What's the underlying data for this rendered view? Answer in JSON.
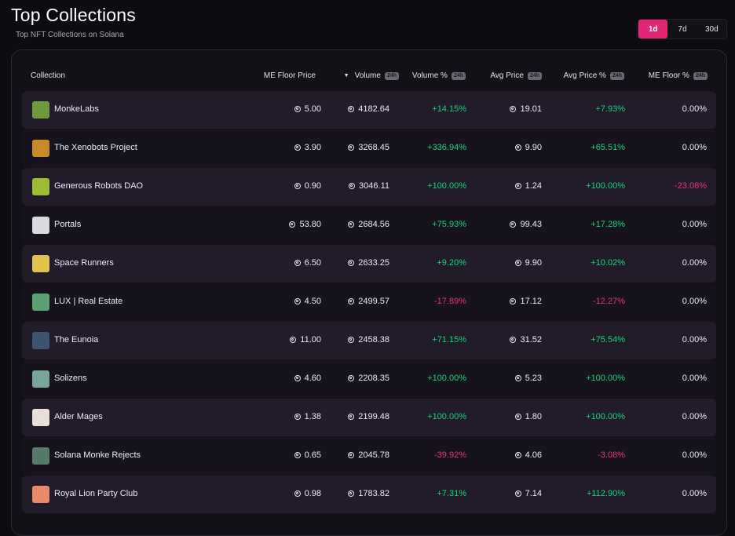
{
  "header": {
    "title": "Top Collections",
    "subtitle": "Top NFT Collections on Solana",
    "ranges": [
      "1d",
      "7d",
      "30d"
    ],
    "active_range": "1d"
  },
  "table": {
    "columns": {
      "collection": "Collection",
      "floor": "ME Floor Price",
      "volume": "Volume",
      "volume_pct": "Volume %",
      "avg_price": "Avg Price",
      "avg_price_pct": "Avg Price %",
      "floor_pct": "ME Floor %",
      "badge": "24h"
    },
    "rows": [
      {
        "name": "MonkeLabs",
        "floor": "5.00",
        "volume": "4182.64",
        "volume_pct": "+14.15%",
        "avg_price": "19.01",
        "avg_price_pct": "+7.93%",
        "floor_pct": "0.00%",
        "avatar": "#6d9a3a"
      },
      {
        "name": "The Xenobots Project",
        "floor": "3.90",
        "volume": "3268.45",
        "volume_pct": "+336.94%",
        "avg_price": "9.90",
        "avg_price_pct": "+65.51%",
        "floor_pct": "0.00%",
        "avatar": "#c98a2a"
      },
      {
        "name": "Generous Robots DAO",
        "floor": "0.90",
        "volume": "3046.11",
        "volume_pct": "+100.00%",
        "avg_price": "1.24",
        "avg_price_pct": "+100.00%",
        "floor_pct": "-23.08%",
        "avatar": "#9dbb33"
      },
      {
        "name": "Portals",
        "floor": "53.80",
        "volume": "2684.56",
        "volume_pct": "+75.93%",
        "avg_price": "99.43",
        "avg_price_pct": "+17.28%",
        "floor_pct": "0.00%",
        "avatar": "#d9d9de"
      },
      {
        "name": "Space Runners",
        "floor": "6.50",
        "volume": "2633.25",
        "volume_pct": "+9.20%",
        "avg_price": "9.90",
        "avg_price_pct": "+10.02%",
        "floor_pct": "0.00%",
        "avatar": "#e0c14a"
      },
      {
        "name": "LUX | Real Estate",
        "floor": "4.50",
        "volume": "2499.57",
        "volume_pct": "-17.89%",
        "avg_price": "17.12",
        "avg_price_pct": "-12.27%",
        "floor_pct": "0.00%",
        "avatar": "#5aa070"
      },
      {
        "name": "The Eunoia",
        "floor": "11.00",
        "volume": "2458.38",
        "volume_pct": "+71.15%",
        "avg_price": "31.52",
        "avg_price_pct": "+75.54%",
        "floor_pct": "0.00%",
        "avatar": "#3d5570"
      },
      {
        "name": "Solizens",
        "floor": "4.60",
        "volume": "2208.35",
        "volume_pct": "+100.00%",
        "avg_price": "5.23",
        "avg_price_pct": "+100.00%",
        "floor_pct": "0.00%",
        "avatar": "#7aa49a"
      },
      {
        "name": "Alder Mages",
        "floor": "1.38",
        "volume": "2199.48",
        "volume_pct": "+100.00%",
        "avg_price": "1.80",
        "avg_price_pct": "+100.00%",
        "floor_pct": "0.00%",
        "avatar": "#e8e0d8"
      },
      {
        "name": "Solana Monke Rejects",
        "floor": "0.65",
        "volume": "2045.78",
        "volume_pct": "-39.92%",
        "avg_price": "4.06",
        "avg_price_pct": "-3.08%",
        "floor_pct": "0.00%",
        "avatar": "#557a6a"
      },
      {
        "name": "Royal Lion Party Club",
        "floor": "0.98",
        "volume": "1783.82",
        "volume_pct": "+7.31%",
        "avg_price": "7.14",
        "avg_price_pct": "+112.90%",
        "floor_pct": "0.00%",
        "avatar": "#e88a6a"
      }
    ]
  },
  "icons": {
    "currency": "solana-icon",
    "sort": "sort-desc-icon"
  },
  "colors": {
    "accent": "#e42575",
    "positive": "#19d47a",
    "negative": "#e6347a"
  }
}
